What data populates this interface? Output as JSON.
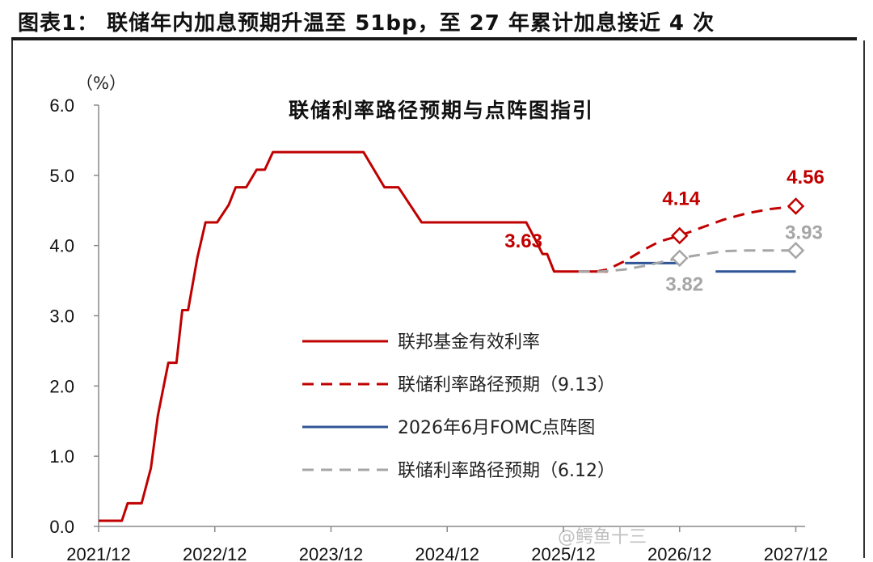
{
  "header": {
    "title": "图表1： 联储年内加息预期升温至 51bp，至 27 年累计加息接近 4 次"
  },
  "watermark": "@鳄鱼十三",
  "chart_data": {
    "type": "line",
    "title": "联储利率路径预期与点阵图指引",
    "ylabel": "（%）",
    "xlabel": "",
    "ylim": [
      0,
      6
    ],
    "xlim": [
      2021.92,
      2028.0
    ],
    "y_ticks": [
      "0.0",
      "1.0",
      "2.0",
      "3.0",
      "4.0",
      "5.0",
      "6.0"
    ],
    "y_tick_values": [
      0,
      1,
      2,
      3,
      4,
      5,
      6
    ],
    "x_ticks": [
      "2021/12",
      "2022/12",
      "2023/12",
      "2024/12",
      "2025/12",
      "2026/12",
      "2027/12"
    ],
    "x_tick_values": [
      2021.92,
      2022.92,
      2023.92,
      2024.92,
      2025.92,
      2026.92,
      2027.92
    ],
    "grid": false,
    "legend_position": "center",
    "series": [
      {
        "name": "联邦基金有效利率",
        "color": "#c00000",
        "style": "solid",
        "x": [
          2021.92,
          2022.12,
          2022.17,
          2022.29,
          2022.37,
          2022.43,
          2022.52,
          2022.59,
          2022.64,
          2022.69,
          2022.77,
          2022.84,
          2022.94,
          2023.04,
          2023.1,
          2023.19,
          2023.28,
          2023.35,
          2023.42,
          2023.5,
          2023.56,
          2023.67,
          2023.92,
          2024.2,
          2024.38,
          2024.5,
          2024.6,
          2024.7,
          2024.84,
          2024.94,
          2025.0,
          2025.2,
          2025.4,
          2025.6,
          2025.68,
          2025.74,
          2025.78,
          2025.84,
          2025.92,
          2026.2,
          2026.3
        ],
        "y": [
          0.08,
          0.08,
          0.33,
          0.33,
          0.83,
          1.58,
          2.33,
          2.33,
          3.08,
          3.08,
          3.83,
          4.33,
          4.33,
          4.58,
          4.83,
          4.83,
          5.08,
          5.08,
          5.33,
          5.33,
          5.33,
          5.33,
          5.33,
          5.33,
          4.83,
          4.83,
          4.58,
          4.33,
          4.33,
          4.33,
          4.33,
          4.33,
          4.33,
          4.33,
          4.08,
          3.88,
          3.88,
          3.63,
          3.63,
          3.63,
          3.63
        ]
      },
      {
        "name": "联储利率路径预期（9.13）",
        "color": "#c00000",
        "style": "dashed",
        "x": [
          2026.2,
          2026.3,
          2026.45,
          2026.6,
          2026.75,
          2026.92,
          2027.1,
          2027.3,
          2027.5,
          2027.7,
          2027.92
        ],
        "y": [
          3.63,
          3.66,
          3.78,
          3.93,
          4.06,
          4.14,
          4.25,
          4.37,
          4.46,
          4.52,
          4.56
        ]
      },
      {
        "name": "2026年6月FOMC点阵图",
        "color": "#2f5597",
        "style": "solid",
        "segments": [
          {
            "x": [
              2026.45,
              2026.92
            ],
            "y": [
              3.75,
              3.75
            ]
          },
          {
            "x": [
              2027.23,
              2027.92
            ],
            "y": [
              3.63,
              3.63
            ]
          }
        ]
      },
      {
        "name": "联储利率路径预期（6.12）",
        "color": "#a6a6a6",
        "style": "dashed",
        "x": [
          2026.05,
          2026.25,
          2026.45,
          2026.65,
          2026.8,
          2026.92,
          2027.1,
          2027.3,
          2027.5,
          2027.7,
          2027.92
        ],
        "y": [
          3.63,
          3.63,
          3.66,
          3.72,
          3.78,
          3.82,
          3.87,
          3.92,
          3.93,
          3.93,
          3.93
        ]
      }
    ],
    "point_markers": [
      {
        "series": "联储利率路径预期（9.13）",
        "x": 2026.92,
        "y": 4.14,
        "color": "#c00000"
      },
      {
        "series": "联储利率路径预期（9.13）",
        "x": 2027.92,
        "y": 4.56,
        "color": "#c00000"
      },
      {
        "series": "联储利率路径预期（6.12）",
        "x": 2026.92,
        "y": 3.82,
        "color": "#a6a6a6"
      },
      {
        "series": "联储利率路径预期（6.12）",
        "x": 2027.92,
        "y": 3.93,
        "color": "#a6a6a6"
      }
    ],
    "annotations": [
      {
        "text": "3.63",
        "x": 2025.92,
        "y": 3.63,
        "color": "#c00000"
      },
      {
        "text": "4.14",
        "x": 2026.92,
        "y": 4.14,
        "color": "#c00000"
      },
      {
        "text": "4.56",
        "x": 2027.92,
        "y": 4.56,
        "color": "#c00000"
      },
      {
        "text": "3.82",
        "x": 2026.92,
        "y": 3.82,
        "color": "#a6a6a6"
      },
      {
        "text": "3.93",
        "x": 2027.92,
        "y": 3.93,
        "color": "#a6a6a6"
      }
    ]
  }
}
